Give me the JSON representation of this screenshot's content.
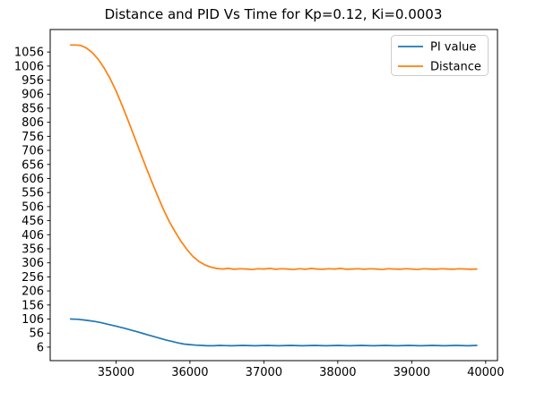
{
  "chart_data": {
    "type": "line",
    "title": "Distance and PID Vs Time for Kp=0.12, Ki=0.0003",
    "xlabel": "",
    "ylabel": "",
    "xlim": [
      34110,
      40160
    ],
    "ylim": [
      -42,
      1136
    ],
    "x_ticks": [
      35000,
      36000,
      37000,
      38000,
      39000,
      40000
    ],
    "y_ticks": [
      6,
      56,
      106,
      156,
      206,
      256,
      306,
      356,
      406,
      456,
      506,
      556,
      606,
      656,
      706,
      756,
      806,
      856,
      906,
      956,
      1006,
      1056
    ],
    "grid": false,
    "background_color": "#ffffff",
    "axis_color": "#000000",
    "legend": {
      "position": "upper right",
      "entries": [
        {
          "label": "PI value",
          "color": "#1f77b4"
        },
        {
          "label": "Distance",
          "color": "#ff7f0e"
        }
      ]
    },
    "series": [
      {
        "name": "PI value",
        "color": "#1f77b4",
        "points": [
          [
            34385,
            106
          ],
          [
            34480,
            105
          ],
          [
            34560,
            103
          ],
          [
            34640,
            100
          ],
          [
            34720,
            97
          ],
          [
            34800,
            93
          ],
          [
            34880,
            88
          ],
          [
            34960,
            83
          ],
          [
            35040,
            78
          ],
          [
            35120,
            73
          ],
          [
            35200,
            67
          ],
          [
            35280,
            61
          ],
          [
            35360,
            55
          ],
          [
            35440,
            49
          ],
          [
            35520,
            43
          ],
          [
            35600,
            37
          ],
          [
            35680,
            31
          ],
          [
            35760,
            26
          ],
          [
            35840,
            21
          ],
          [
            35920,
            17
          ],
          [
            36000,
            15
          ],
          [
            36080,
            13
          ],
          [
            36160,
            12
          ],
          [
            36240,
            11
          ],
          [
            36320,
            11
          ],
          [
            36400,
            12
          ],
          [
            36560,
            11
          ],
          [
            36720,
            12
          ],
          [
            36880,
            11
          ],
          [
            37040,
            12
          ],
          [
            37200,
            11
          ],
          [
            37360,
            12
          ],
          [
            37520,
            11
          ],
          [
            37680,
            12
          ],
          [
            37840,
            11
          ],
          [
            38000,
            12
          ],
          [
            38160,
            11
          ],
          [
            38320,
            12
          ],
          [
            38480,
            11
          ],
          [
            38640,
            12
          ],
          [
            38800,
            11
          ],
          [
            38960,
            12
          ],
          [
            39120,
            11
          ],
          [
            39280,
            12
          ],
          [
            39440,
            11
          ],
          [
            39600,
            12
          ],
          [
            39760,
            11
          ],
          [
            39880,
            12
          ]
        ]
      },
      {
        "name": "Distance",
        "color": "#ff7f0e",
        "points": [
          [
            34385,
            1081
          ],
          [
            34460,
            1081
          ],
          [
            34530,
            1079
          ],
          [
            34600,
            1070
          ],
          [
            34680,
            1054
          ],
          [
            34760,
            1030
          ],
          [
            34840,
            999
          ],
          [
            34920,
            962
          ],
          [
            35000,
            918
          ],
          [
            35080,
            868
          ],
          [
            35160,
            815
          ],
          [
            35240,
            760
          ],
          [
            35320,
            705
          ],
          [
            35400,
            650
          ],
          [
            35480,
            597
          ],
          [
            35560,
            546
          ],
          [
            35640,
            497
          ],
          [
            35720,
            453
          ],
          [
            35800,
            416
          ],
          [
            35880,
            382
          ],
          [
            35960,
            353
          ],
          [
            36040,
            329
          ],
          [
            36120,
            311
          ],
          [
            36200,
            299
          ],
          [
            36280,
            291
          ],
          [
            36360,
            286
          ],
          [
            36440,
            284
          ],
          [
            36520,
            286
          ],
          [
            36600,
            283
          ],
          [
            36680,
            285
          ],
          [
            36760,
            284
          ],
          [
            36840,
            282
          ],
          [
            36920,
            285
          ],
          [
            37000,
            284
          ],
          [
            37080,
            286
          ],
          [
            37160,
            283
          ],
          [
            37240,
            285
          ],
          [
            37320,
            284
          ],
          [
            37400,
            282
          ],
          [
            37480,
            285
          ],
          [
            37560,
            283
          ],
          [
            37640,
            286
          ],
          [
            37720,
            284
          ],
          [
            37800,
            283
          ],
          [
            37880,
            285
          ],
          [
            37960,
            284
          ],
          [
            38040,
            286
          ],
          [
            38120,
            283
          ],
          [
            38200,
            284
          ],
          [
            38280,
            285
          ],
          [
            38360,
            283
          ],
          [
            38440,
            285
          ],
          [
            38520,
            284
          ],
          [
            38600,
            282
          ],
          [
            38680,
            285
          ],
          [
            38760,
            284
          ],
          [
            38840,
            283
          ],
          [
            38920,
            285
          ],
          [
            39000,
            284
          ],
          [
            39080,
            282
          ],
          [
            39160,
            285
          ],
          [
            39240,
            284
          ],
          [
            39320,
            283
          ],
          [
            39400,
            285
          ],
          [
            39480,
            284
          ],
          [
            39560,
            283
          ],
          [
            39640,
            285
          ],
          [
            39720,
            284
          ],
          [
            39800,
            283
          ],
          [
            39880,
            284
          ]
        ]
      }
    ]
  }
}
